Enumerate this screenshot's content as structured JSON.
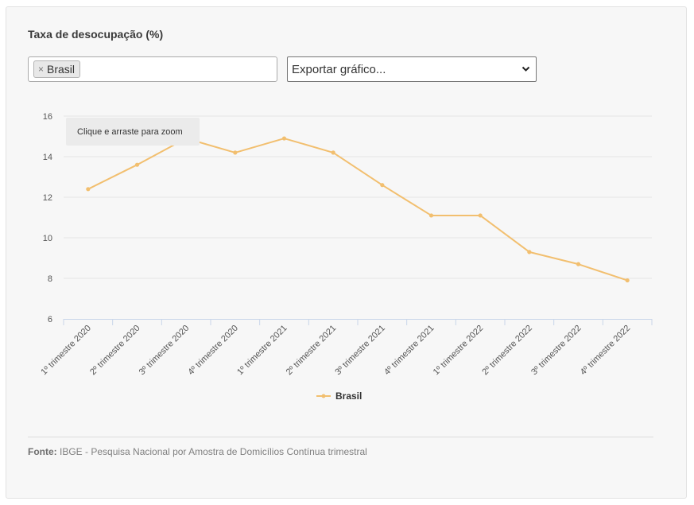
{
  "title": "Taxa de desocupação (%)",
  "filter": {
    "tag_label": "Brasil",
    "tag_remove": "×"
  },
  "export_select": {
    "label": "Exportar gráfico...",
    "chevron_icon": "chevron-down-icon"
  },
  "tooltip": "Clique e arraste para zoom",
  "legend": {
    "label": "Brasil"
  },
  "footer": {
    "label": "Fonte:",
    "text": "IBGE - Pesquisa Nacional por Amostra de Domicílios Contínua trimestral"
  },
  "colors": {
    "series": "#f2bf6f",
    "grid": "#e4e4e4",
    "axis": "#c9d6ea"
  },
  "chart_data": {
    "type": "line",
    "categories": [
      "1º trimestre 2020",
      "2º trimestre 2020",
      "3º trimestre 2020",
      "4º trimestre 2020",
      "1º trimestre 2021",
      "2º trimestre 2021",
      "3º trimestre 2021",
      "4º trimestre 2021",
      "1º trimestre 2022",
      "2º trimestre 2022",
      "3º trimestre 2022",
      "4º trimestre 2022"
    ],
    "series": [
      {
        "name": "Brasil",
        "values": [
          12.4,
          13.6,
          14.9,
          14.2,
          14.9,
          14.2,
          12.6,
          11.1,
          11.1,
          9.3,
          8.7,
          7.9
        ]
      }
    ],
    "ylim": [
      6,
      16
    ],
    "yticks": [
      6,
      8,
      10,
      12,
      14,
      16
    ],
    "grid": true,
    "legend_position": "bottom"
  }
}
